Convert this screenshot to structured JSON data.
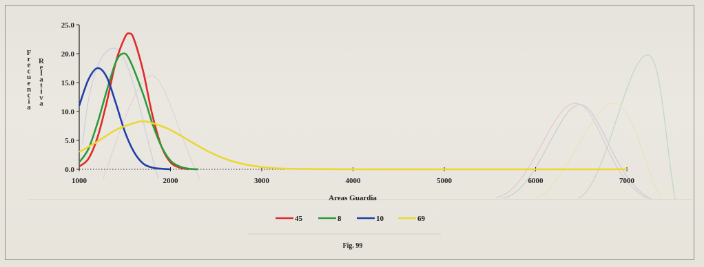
{
  "chart_data": {
    "type": "line",
    "title": "",
    "xlabel": "Areas Guardia",
    "ylabel": "Frecuencia Relativa",
    "xlim": [
      1000,
      7000
    ],
    "ylim": [
      0,
      25
    ],
    "x_ticks": [
      "1000",
      "2000",
      "3000",
      "4000",
      "5000",
      "6000",
      "7000"
    ],
    "y_ticks": [
      "0.0",
      "5.0",
      "10.0",
      "15.0",
      "20.0",
      "25.0"
    ],
    "grid": false,
    "legend": "bottom",
    "caption": "Fig. 99",
    "series": [
      {
        "name": "45",
        "color": "#e02a2a",
        "x": [
          1000,
          1100,
          1200,
          1300,
          1400,
          1500,
          1550,
          1600,
          1700,
          1800,
          1900,
          2000,
          2100,
          2200
        ],
        "y": [
          0.5,
          1.8,
          5.5,
          11.5,
          18.5,
          22.8,
          23.5,
          22.5,
          17.0,
          9.5,
          4.0,
          1.2,
          0.3,
          0.0
        ]
      },
      {
        "name": "8",
        "color": "#2e9a3c",
        "x": [
          1000,
          1100,
          1200,
          1300,
          1400,
          1475,
          1550,
          1700,
          1800,
          1900,
          2000,
          2100,
          2200,
          2300
        ],
        "y": [
          1.2,
          3.5,
          8.0,
          13.5,
          18.5,
          20.0,
          19.0,
          13.0,
          8.0,
          4.0,
          1.5,
          0.5,
          0.1,
          0.0
        ]
      },
      {
        "name": "10",
        "color": "#1f3fa8",
        "x": [
          1000,
          1100,
          1200,
          1300,
          1400,
          1500,
          1600,
          1700,
          1800,
          1900,
          2000
        ],
        "y": [
          11.0,
          15.5,
          17.5,
          16.0,
          11.5,
          6.5,
          3.0,
          1.0,
          0.3,
          0.1,
          0.0
        ]
      },
      {
        "name": "69",
        "color": "#e9d834",
        "x": [
          1000,
          1200,
          1400,
          1600,
          1700,
          1800,
          2000,
          2200,
          2400,
          2600,
          2800,
          3000,
          3200,
          3500,
          4000,
          5000,
          6000,
          7000
        ],
        "y": [
          3.0,
          4.8,
          6.8,
          8.0,
          8.3,
          8.0,
          6.8,
          5.0,
          3.2,
          1.8,
          0.9,
          0.4,
          0.15,
          0.05,
          0.0,
          0.0,
          0.0,
          0.0
        ]
      }
    ]
  }
}
